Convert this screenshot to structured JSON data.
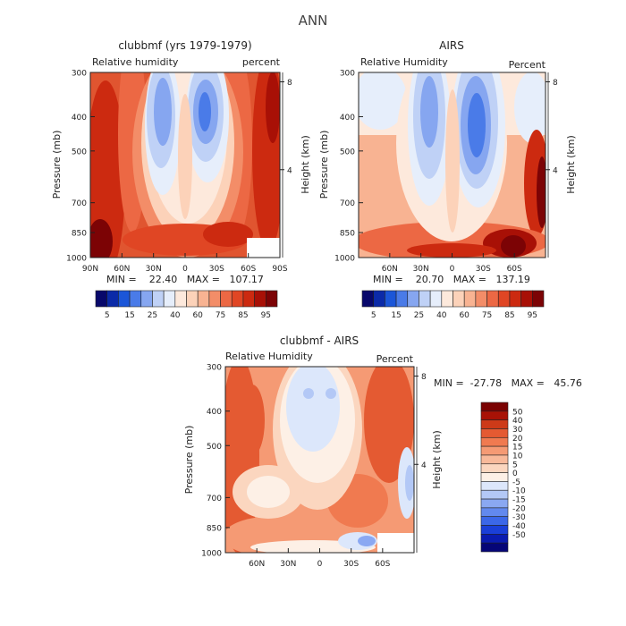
{
  "figure": {
    "title": "ANN"
  },
  "colors": {
    "abs_scale": [
      "#08086b",
      "#0b2aa8",
      "#1b56d8",
      "#4a7be8",
      "#86a6f0",
      "#bfd1f6",
      "#e6eefb",
      "#fde9dc",
      "#fcd2b9",
      "#f8b392",
      "#f38d68",
      "#ec6844",
      "#e04624",
      "#cc2a10",
      "#a81006",
      "#7c0305"
    ],
    "diff_scale": [
      "#050577",
      "#0a1bb0",
      "#1a3fd8",
      "#3b67e8",
      "#6289ee",
      "#8aa8f2",
      "#b3c8f6",
      "#dce7fb",
      "#fdf0e6",
      "#fbd6bf",
      "#f8b99a",
      "#f59a74",
      "#f07a50",
      "#e45a32",
      "#cd3a18",
      "#a81206",
      "#7a0202"
    ]
  },
  "chart_data": [
    {
      "type": "heatmap",
      "title": "clubbmf (yrs 1979-1979)",
      "subtitle_left": "Relative humidity",
      "subtitle_right": "percent",
      "ylabel": "Pressure (mb)",
      "ylabel_right": "Height (km)",
      "x_ticklabels": [
        "90N",
        "60N",
        "30N",
        "0",
        "30S",
        "60S",
        "90S"
      ],
      "x_tickvalues": [
        90,
        60,
        30,
        0,
        -30,
        -60,
        -90
      ],
      "xlim": [
        90,
        -90
      ],
      "y_ticklabels": [
        "300",
        "400",
        "500",
        "700",
        "850",
        "1000"
      ],
      "y_tickvalues": [
        300,
        400,
        500,
        700,
        850,
        1000
      ],
      "ylim": [
        300,
        1000
      ],
      "y_right_ticklabels": [
        "8",
        "4"
      ],
      "y_right_tickvalues": [
        8,
        4
      ],
      "stats": "MIN =    22.40   MAX =   107.17",
      "colorbar_labels": [
        "5",
        "15",
        "25",
        "40",
        "60",
        "75",
        "85",
        "95"
      ],
      "levels": [
        5,
        10,
        15,
        20,
        25,
        30,
        40,
        50,
        60,
        65,
        70,
        75,
        80,
        85,
        90,
        95
      ]
    },
    {
      "type": "heatmap",
      "title": "AIRS",
      "subtitle_left": "Relative Humidity",
      "subtitle_right": "Percent",
      "ylabel": "Pressure (mb)",
      "ylabel_right": "Height (km)",
      "x_ticklabels": [
        "60N",
        "30N",
        "0",
        "30S",
        "60S"
      ],
      "x_tickvalues": [
        60,
        30,
        0,
        -30,
        -60
      ],
      "xlim": [
        90,
        -90
      ],
      "y_ticklabels": [
        "300",
        "400",
        "500",
        "700",
        "850",
        "1000"
      ],
      "y_tickvalues": [
        300,
        400,
        500,
        700,
        850,
        1000
      ],
      "ylim": [
        300,
        1000
      ],
      "y_right_ticklabels": [
        "8",
        "4"
      ],
      "y_right_tickvalues": [
        8,
        4
      ],
      "stats": "MIN =    20.70   MAX =   137.19",
      "colorbar_labels": [
        "5",
        "15",
        "25",
        "40",
        "60",
        "75",
        "85",
        "95"
      ],
      "levels": [
        5,
        10,
        15,
        20,
        25,
        30,
        40,
        50,
        60,
        65,
        70,
        75,
        80,
        85,
        90,
        95
      ]
    },
    {
      "type": "heatmap",
      "title": "clubbmf - AIRS",
      "subtitle_left": "Relative Humidity",
      "subtitle_right": "Percent",
      "ylabel": "Pressure (mb)",
      "ylabel_right": "Height (km)",
      "x_ticklabels": [
        "60N",
        "30N",
        "0",
        "30S",
        "60S"
      ],
      "x_tickvalues": [
        60,
        30,
        0,
        -30,
        -60
      ],
      "xlim": [
        90,
        -90
      ],
      "y_ticklabels": [
        "300",
        "400",
        "500",
        "700",
        "850",
        "1000"
      ],
      "y_tickvalues": [
        300,
        400,
        500,
        700,
        850,
        1000
      ],
      "ylim": [
        300,
        1000
      ],
      "y_right_ticklabels": [
        "8",
        "4"
      ],
      "y_right_tickvalues": [
        8,
        4
      ],
      "stats": "MIN =  -27.78   MAX =   45.76",
      "colorbar_labels": [
        "50",
        "40",
        "30",
        "20",
        "15",
        "10",
        "5",
        "0",
        "-5",
        "-10",
        "-15",
        "-20",
        "-30",
        "-40",
        "-50"
      ],
      "levels": [
        50,
        40,
        30,
        20,
        15,
        10,
        5,
        0,
        -5,
        -10,
        -15,
        -20,
        -30,
        -40,
        -50
      ]
    }
  ]
}
